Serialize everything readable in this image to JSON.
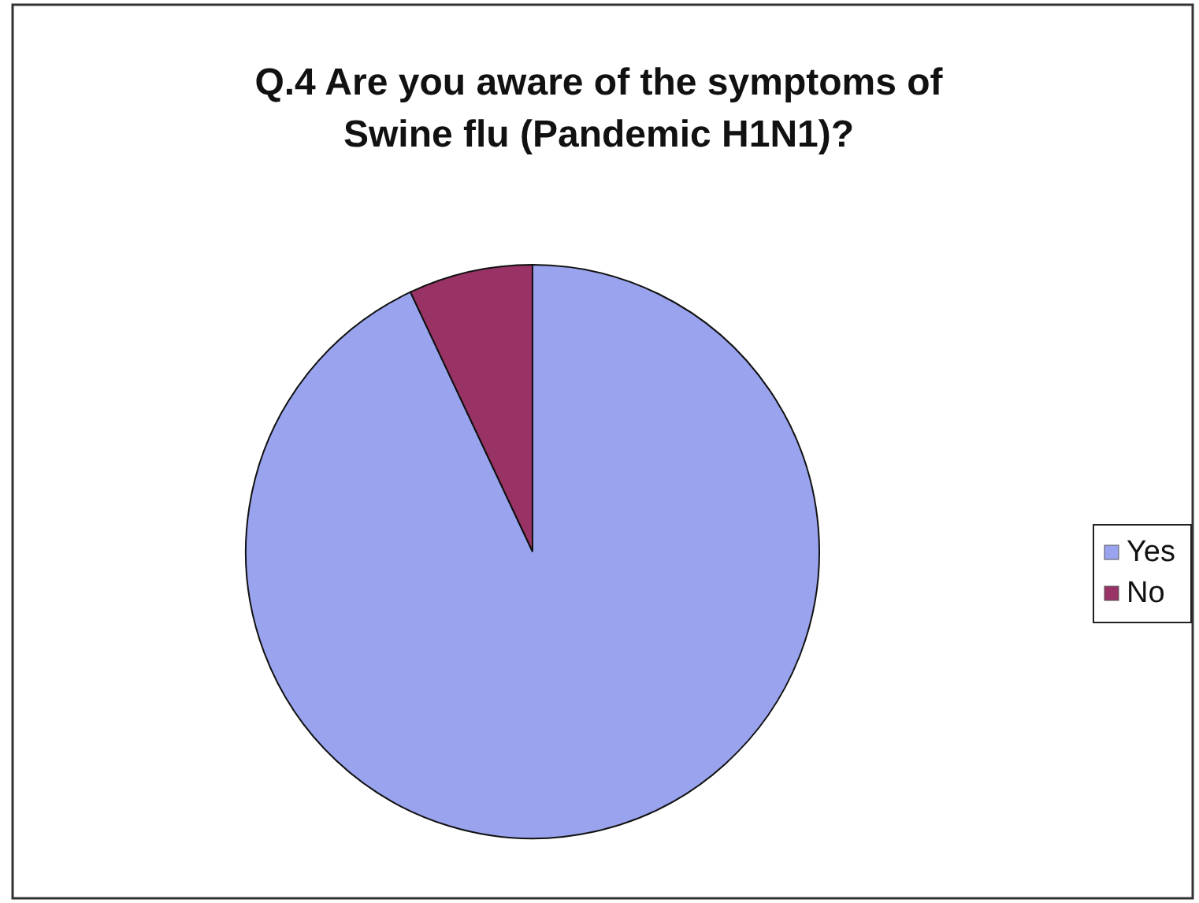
{
  "chart_data": {
    "type": "pie",
    "title": "Q.4 Are you aware of the symptoms of Swine flu (Pandemic H1N1)?",
    "categories": [
      "Yes",
      "No"
    ],
    "values": [
      93,
      7
    ],
    "colors": [
      "#9aa4ee",
      "#993366"
    ],
    "legend": "right"
  }
}
